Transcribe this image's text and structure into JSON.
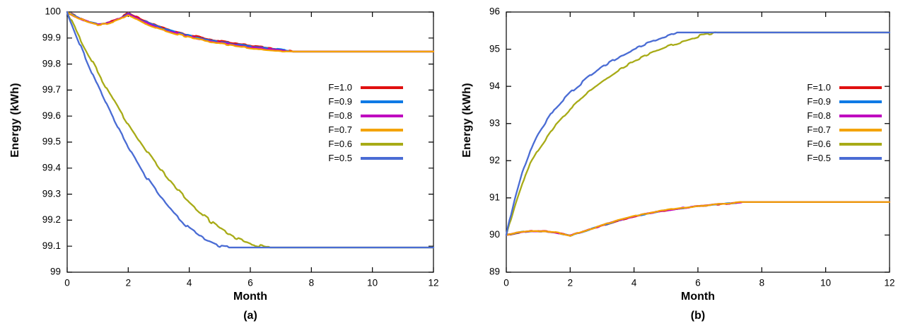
{
  "figure": {
    "background": "#ffffff"
  },
  "chart_data": [
    {
      "id": "a",
      "type": "line",
      "title": "(a)",
      "xlabel": "Month",
      "ylabel": "Energy (kWh)",
      "xlim": [
        0,
        12
      ],
      "ylim": [
        99,
        100
      ],
      "grid": false,
      "legend_position": "inside-right",
      "xticks": [
        0,
        2,
        4,
        6,
        8,
        10,
        12
      ],
      "xtick_labels": [
        "0",
        "2",
        "4",
        "6",
        "8",
        "10",
        "12"
      ],
      "yticks": [
        99,
        99.1,
        99.2,
        99.3,
        99.4,
        99.5,
        99.6,
        99.7,
        99.8,
        99.9,
        100
      ],
      "ytick_labels": [
        "99",
        "99.1",
        "99.2",
        "99.3",
        "99.4",
        "99.5",
        "99.6",
        "99.7",
        "99.8",
        "99.9",
        "100"
      ],
      "series": [
        {
          "name": "F=1.0",
          "color": "#e01010",
          "jitter": 0.0025,
          "x": [
            0,
            0.25,
            0.5,
            0.75,
            1,
            1.25,
            1.5,
            1.75,
            2,
            2.5,
            3,
            3.5,
            4,
            4.5,
            5,
            5.5,
            6,
            6.5,
            7,
            7.4,
            12
          ],
          "y": [
            100,
            99.986,
            99.972,
            99.961,
            99.954,
            99.957,
            99.965,
            99.977,
            99.996,
            99.968,
            99.945,
            99.927,
            99.912,
            99.899,
            99.888,
            99.879,
            99.871,
            99.864,
            99.857,
            99.848,
            99.848
          ]
        },
        {
          "name": "F=0.9",
          "color": "#0f7ae5",
          "jitter": 0.0025,
          "x": [
            0,
            0.25,
            0.5,
            0.75,
            1,
            1.25,
            1.5,
            1.75,
            2,
            2.5,
            3,
            3.5,
            4,
            4.5,
            5,
            5.5,
            6,
            6.5,
            7,
            7.4,
            12
          ],
          "y": [
            100,
            99.985,
            99.971,
            99.96,
            99.953,
            99.956,
            99.964,
            99.976,
            99.994,
            99.965,
            99.942,
            99.924,
            99.909,
            99.896,
            99.885,
            99.876,
            99.868,
            99.861,
            99.855,
            99.848,
            99.848
          ]
        },
        {
          "name": "F=0.8",
          "color": "#bf00bf",
          "jitter": 0.0025,
          "x": [
            0,
            0.25,
            0.5,
            0.75,
            1,
            1.25,
            1.5,
            1.75,
            2,
            2.5,
            3,
            3.5,
            4,
            4.5,
            5,
            5.5,
            6,
            6.5,
            7,
            7.4,
            12
          ],
          "y": [
            100,
            99.984,
            99.97,
            99.959,
            99.952,
            99.955,
            99.963,
            99.975,
            99.992,
            99.962,
            99.939,
            99.921,
            99.906,
            99.893,
            99.882,
            99.873,
            99.865,
            99.858,
            99.852,
            99.848,
            99.848
          ]
        },
        {
          "name": "F=0.7",
          "color": "#f4a300",
          "jitter": 0.0025,
          "x": [
            0,
            0.25,
            0.5,
            0.75,
            1,
            1.25,
            1.5,
            1.75,
            2,
            2.5,
            3,
            3.5,
            4,
            4.5,
            5,
            5.5,
            6,
            6.5,
            7,
            7.4,
            12
          ],
          "y": [
            100,
            99.983,
            99.969,
            99.958,
            99.951,
            99.954,
            99.962,
            99.974,
            99.99,
            99.959,
            99.936,
            99.918,
            99.903,
            99.89,
            99.879,
            99.87,
            99.862,
            99.855,
            99.849,
            99.848,
            99.848
          ]
        },
        {
          "name": "F=0.6",
          "color": "#a8ab17",
          "jitter": 0.006,
          "x": [
            0,
            0.25,
            0.5,
            0.75,
            1,
            1.25,
            1.5,
            1.75,
            2,
            2.5,
            3,
            3.5,
            4,
            4.5,
            5,
            5.5,
            6,
            6.5,
            6.65,
            12
          ],
          "y": [
            100,
            99.94,
            99.881,
            99.825,
            99.77,
            99.717,
            99.666,
            99.617,
            99.57,
            99.482,
            99.402,
            99.331,
            99.268,
            99.214,
            99.169,
            99.133,
            99.109,
            99.096,
            99.095,
            99.095
          ]
        },
        {
          "name": "F=0.5",
          "color": "#4a6cd4",
          "jitter": 0.006,
          "x": [
            0,
            0.25,
            0.5,
            0.75,
            1,
            1.25,
            1.5,
            1.75,
            2,
            2.5,
            3,
            3.5,
            4,
            4.5,
            5,
            5.3,
            12
          ],
          "y": [
            100,
            99.925,
            99.852,
            99.783,
            99.716,
            99.653,
            99.592,
            99.535,
            99.481,
            99.382,
            99.297,
            99.225,
            99.167,
            99.125,
            99.1,
            99.095,
            99.095
          ]
        }
      ]
    },
    {
      "id": "b",
      "type": "line",
      "title": "(b)",
      "xlabel": "Month",
      "ylabel": "Energy (kWh)",
      "xlim": [
        0,
        12
      ],
      "ylim": [
        89,
        96
      ],
      "grid": false,
      "legend_position": "inside-right",
      "xticks": [
        0,
        2,
        4,
        6,
        8,
        10,
        12
      ],
      "xtick_labels": [
        "0",
        "2",
        "4",
        "6",
        "8",
        "10",
        "12"
      ],
      "yticks": [
        89,
        90,
        91,
        92,
        93,
        94,
        95,
        96
      ],
      "ytick_labels": [
        "89",
        "90",
        "91",
        "92",
        "93",
        "94",
        "95",
        "96"
      ],
      "series": [
        {
          "name": "F=1.0",
          "color": "#e01010",
          "jitter": 0.012,
          "x": [
            0,
            0.25,
            0.5,
            0.75,
            1,
            1.25,
            1.5,
            1.75,
            2,
            2.5,
            3,
            3.5,
            4,
            4.5,
            5,
            5.5,
            6,
            6.5,
            7,
            7.4,
            12
          ],
          "y": [
            90,
            90.042,
            90.078,
            90.099,
            90.104,
            90.096,
            90.072,
            90.032,
            89.982,
            90.115,
            90.255,
            90.385,
            90.495,
            90.585,
            90.658,
            90.718,
            90.768,
            90.812,
            90.848,
            90.888,
            90.888
          ]
        },
        {
          "name": "F=0.9",
          "color": "#0f7ae5",
          "jitter": 0.012,
          "x": [
            0,
            0.25,
            0.5,
            0.75,
            1,
            1.25,
            1.5,
            1.75,
            2,
            2.5,
            3,
            3.5,
            4,
            4.5,
            5,
            5.5,
            6,
            6.5,
            7,
            7.4,
            12
          ],
          "y": [
            90,
            90.043,
            90.079,
            90.1,
            90.105,
            90.097,
            90.074,
            90.034,
            89.984,
            90.118,
            90.259,
            90.39,
            90.5,
            90.59,
            90.663,
            90.722,
            90.772,
            90.815,
            90.851,
            90.888,
            90.888
          ]
        },
        {
          "name": "F=0.8",
          "color": "#bf00bf",
          "jitter": 0.012,
          "x": [
            0,
            0.25,
            0.5,
            0.75,
            1,
            1.25,
            1.5,
            1.75,
            2,
            2.5,
            3,
            3.5,
            4,
            4.5,
            5,
            5.5,
            6,
            6.5,
            7,
            7.4,
            12
          ],
          "y": [
            90,
            90.044,
            90.08,
            90.101,
            90.106,
            90.098,
            90.076,
            90.036,
            89.986,
            90.121,
            90.263,
            90.395,
            90.505,
            90.595,
            90.667,
            90.726,
            90.775,
            90.818,
            90.853,
            90.888,
            90.888
          ]
        },
        {
          "name": "F=0.7",
          "color": "#f4a300",
          "jitter": 0.012,
          "x": [
            0,
            0.25,
            0.5,
            0.75,
            1,
            1.25,
            1.5,
            1.75,
            2,
            2.5,
            3,
            3.5,
            4,
            4.5,
            5,
            5.5,
            6,
            6.5,
            7,
            7.4,
            12
          ],
          "y": [
            90,
            90.045,
            90.081,
            90.102,
            90.107,
            90.099,
            90.078,
            90.038,
            89.988,
            90.124,
            90.267,
            90.4,
            90.51,
            90.6,
            90.672,
            90.73,
            90.779,
            90.821,
            90.855,
            90.888,
            90.888
          ]
        },
        {
          "name": "F=0.6",
          "color": "#a8ab17",
          "jitter": 0.035,
          "x": [
            0,
            0.25,
            0.5,
            0.75,
            1,
            1.5,
            2,
            2.5,
            3,
            3.5,
            4,
            4.5,
            5,
            5.5,
            6,
            6.6,
            12
          ],
          "y": [
            90,
            90.75,
            91.4,
            91.92,
            92.3,
            92.92,
            93.38,
            93.78,
            94.12,
            94.42,
            94.67,
            94.88,
            95.06,
            95.21,
            95.34,
            95.45,
            95.45
          ]
        },
        {
          "name": "F=0.5",
          "color": "#4a6cd4",
          "jitter": 0.035,
          "x": [
            0,
            0.25,
            0.5,
            0.75,
            1,
            1.5,
            2,
            2.5,
            3,
            3.5,
            4,
            4.5,
            5,
            5.35,
            12
          ],
          "y": [
            90,
            90.92,
            91.68,
            92.26,
            92.72,
            93.38,
            93.82,
            94.2,
            94.52,
            94.78,
            95,
            95.18,
            95.34,
            95.45,
            95.45
          ]
        }
      ]
    }
  ]
}
